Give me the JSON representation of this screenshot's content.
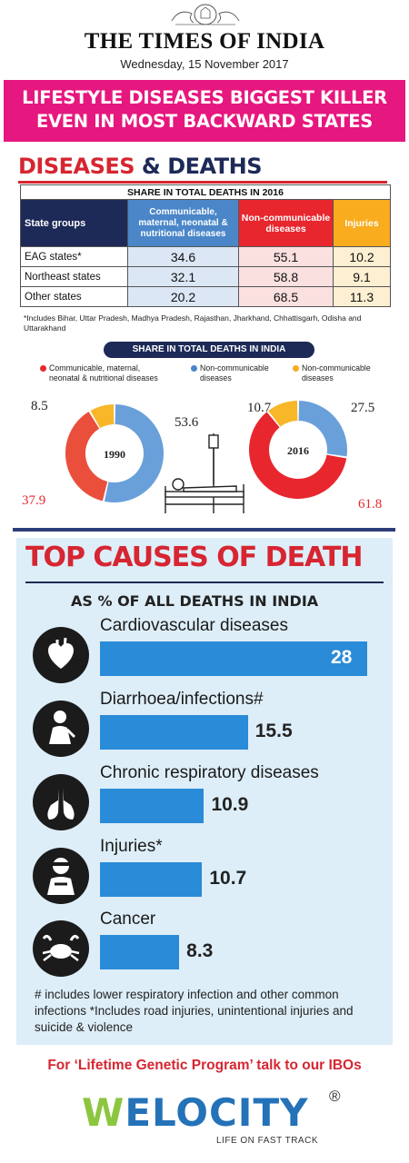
{
  "masthead": {
    "paper_name": "THE TIMES OF INDIA",
    "date": "Wednesday, 15 November 2017"
  },
  "headline": {
    "line1": "LIFESTYLE DISEASES BIGGEST KILLER",
    "line2": "EVEN IN MOST BACKWARD STATES"
  },
  "diseases_section": {
    "title_part1": "DISEASES",
    "title_amp": " & ",
    "title_part2": "DEATHS",
    "table_title": "SHARE IN TOTAL DEATHS IN 2016",
    "footnote": "*Includes Bihar, Uttar Pradesh, Madhya Pradesh, Rajasthan, Jharkhand, Chhattisgarh, Odisha and Uttarakhand",
    "india_bar": "SHARE IN TOTAL DEATHS IN INDIA",
    "legend": [
      {
        "label_line1": "Communicable, maternal,",
        "label_line2": "neonatal & nutritional diseases",
        "color": "#e8262e"
      },
      {
        "label_line1": "Non-communicable",
        "label_line2": "diseases",
        "color": "#4a86c8"
      },
      {
        "label_line1": "Non-communicable",
        "label_line2": "diseases",
        "color": "#f8ac1e"
      }
    ]
  },
  "causes_section": {
    "title": "TOP CAUSES OF DEATH",
    "subtitle": "AS % OF ALL DEATHS IN INDIA",
    "note": "# includes lower respiratory infection and other common infections *Includes road injuries, unintentional injuries and suicide & violence"
  },
  "footer": {
    "promo": "For ‘Lifetime Genetic Program’ talk to our IBOs",
    "logo_w": "W",
    "logo_rest": "ELOCITY",
    "logo_reg": "®",
    "tagline": "LIFE ON FAST TRACK"
  },
  "chart_data": [
    {
      "type": "table",
      "title": "SHARE IN TOTAL DEATHS IN 2016",
      "columns": [
        "State groups",
        "Communicable, maternal, neonatal & nutritional diseases",
        "Non-communicable diseases",
        "Injuries"
      ],
      "rows": [
        [
          "EAG states*",
          "34.6",
          "55.1",
          "10.2"
        ],
        [
          "Northeast states",
          "32.1",
          "58.8",
          "9.1"
        ],
        [
          "Other states",
          "20.2",
          "68.5",
          "11.3"
        ]
      ],
      "colors": {
        "header_state": "#1d2a57",
        "communicable": "#4a86c8",
        "ncd": "#e8262e",
        "injuries": "#f8ac1e"
      }
    },
    {
      "type": "pie",
      "title": "SHARE IN TOTAL DEATHS IN INDIA",
      "charts": [
        {
          "center_label": "1990",
          "slices": [
            {
              "series": "Non-communicable diseases",
              "value": 53.6,
              "label": "53.6",
              "color": "#6aa0da"
            },
            {
              "series": "Communicable, maternal, neonatal & nutritional diseases",
              "value": 37.9,
              "label": "37.9",
              "color": "#e94f3b"
            },
            {
              "series": "Non-communicable diseases",
              "value": 8.5,
              "label": "8.5",
              "color": "#f8b629"
            }
          ]
        },
        {
          "center_label": "2016",
          "slices": [
            {
              "series": "Non-communicable diseases",
              "value": 27.5,
              "label": "27.5",
              "color": "#6aa0da"
            },
            {
              "series": "Communicable, maternal, neonatal & nutritional diseases",
              "value": 61.8,
              "label": "61.8",
              "color": "#e8262e"
            },
            {
              "series": "Non-communicable diseases",
              "value": 10.7,
              "label": "10.7",
              "color": "#f8b629"
            }
          ]
        }
      ]
    },
    {
      "type": "bar",
      "orientation": "horizontal",
      "title": "TOP CAUSES OF DEATH",
      "subtitle": "AS % OF ALL DEATHS IN INDIA",
      "categories": [
        "Cardiovascular diseases",
        "Diarrhoea/infections#",
        "Chronic respiratory diseases",
        "Injuries*",
        "Cancer"
      ],
      "values": [
        28,
        15.5,
        10.9,
        10.7,
        8.3
      ],
      "value_labels": [
        "28",
        "15.5",
        "10.9",
        "10.7",
        "8.3"
      ],
      "icons": [
        "heart-icon",
        "sick-person-icon",
        "lungs-icon",
        "injured-person-icon",
        "crab-icon"
      ],
      "bar_color": "#2a8bd8",
      "xlim": [
        0,
        28
      ]
    }
  ]
}
